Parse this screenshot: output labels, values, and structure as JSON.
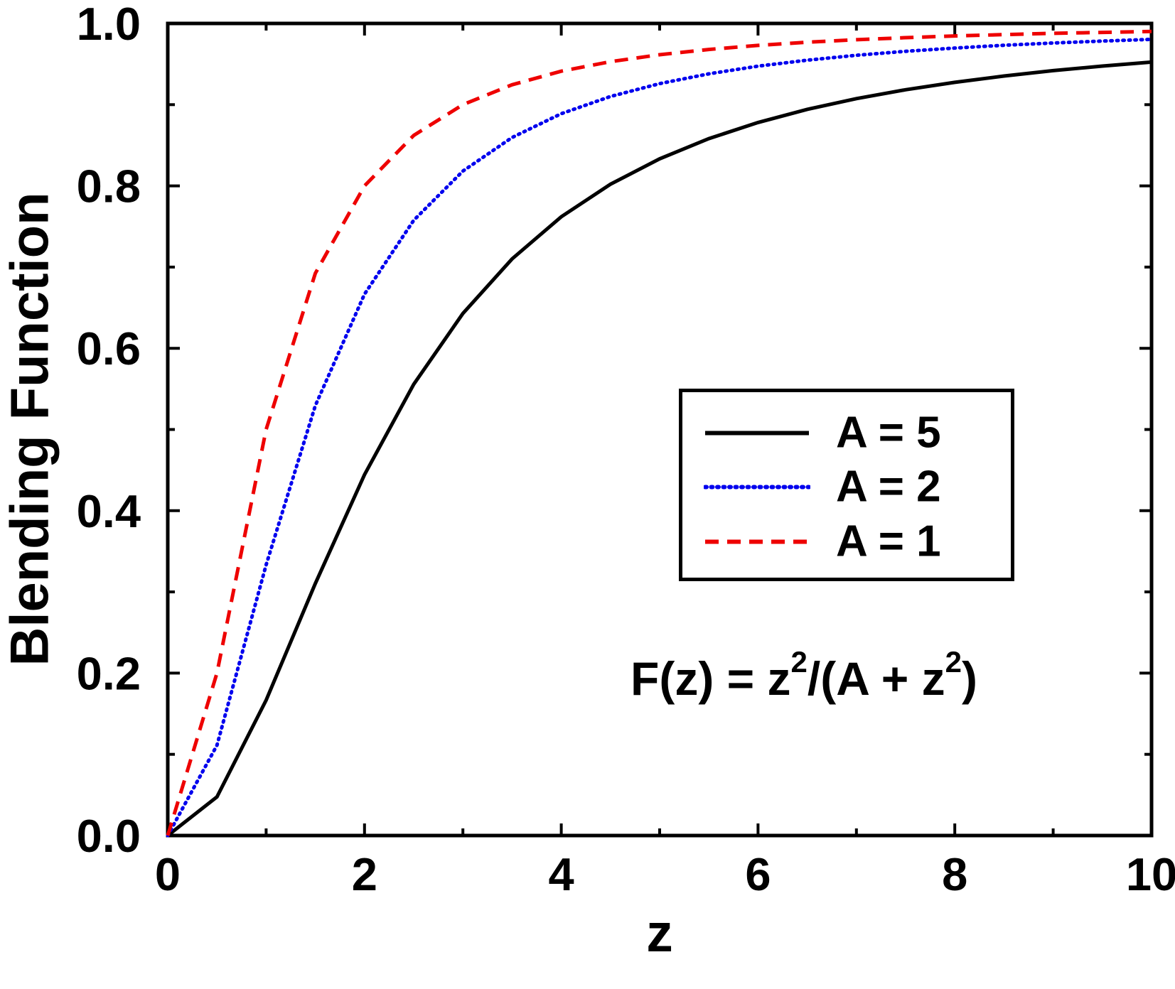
{
  "chart_data": {
    "type": "line",
    "title": "",
    "xlabel": "z",
    "ylabel": "Blending Function",
    "xlim": [
      0,
      10
    ],
    "ylim": [
      0.0,
      1.0
    ],
    "grid": false,
    "frame": "full-box-ticks-inward",
    "legend_position": "inside-upper-right",
    "x_major_ticks": [
      0,
      2,
      4,
      6,
      8,
      10
    ],
    "x_minor_ticks": [
      1,
      3,
      5,
      7,
      9
    ],
    "x_tick_labels": [
      "0",
      "2",
      "4",
      "6",
      "8",
      "10"
    ],
    "y_major_ticks": [
      0.0,
      0.2,
      0.4,
      0.6,
      0.8,
      1.0
    ],
    "y_minor_ticks": [
      0.1,
      0.3,
      0.5,
      0.7,
      0.9
    ],
    "y_tick_labels": [
      "0.0",
      "0.2",
      "0.4",
      "0.6",
      "0.8",
      "1.0"
    ],
    "x": [
      0,
      0.5,
      1,
      1.5,
      2,
      2.5,
      3,
      3.5,
      4,
      4.5,
      5,
      5.5,
      6,
      6.5,
      7,
      7.5,
      8,
      8.5,
      9,
      9.5,
      10
    ],
    "series": [
      {
        "name": "A = 5",
        "color": "#000000",
        "style": "solid",
        "values": [
          0,
          0.0476,
          0.1667,
          0.3103,
          0.4444,
          0.5556,
          0.6429,
          0.7101,
          0.7619,
          0.802,
          0.8333,
          0.8582,
          0.878,
          0.8942,
          0.9074,
          0.9184,
          0.9275,
          0.9353,
          0.9419,
          0.9475,
          0.9524
        ]
      },
      {
        "name": "A = 2",
        "color": "#0000ee",
        "style": "dotted",
        "values": [
          0,
          0.1111,
          0.3333,
          0.5294,
          0.6667,
          0.7576,
          0.8182,
          0.8596,
          0.8889,
          0.9101,
          0.9259,
          0.938,
          0.9474,
          0.9548,
          0.9608,
          0.9657,
          0.9697,
          0.9731,
          0.9759,
          0.9783,
          0.9804
        ]
      },
      {
        "name": "A = 1",
        "color": "#ee0000",
        "style": "dashed",
        "values": [
          0,
          0.2,
          0.5,
          0.6923,
          0.8,
          0.8621,
          0.9,
          0.9245,
          0.9412,
          0.9529,
          0.9615,
          0.968,
          0.973,
          0.9769,
          0.98,
          0.9825,
          0.9846,
          0.9863,
          0.9878,
          0.989,
          0.9901
        ]
      }
    ]
  },
  "legend": {
    "items": [
      {
        "label": "A = 5"
      },
      {
        "label": "A = 2"
      },
      {
        "label": "A = 1"
      }
    ]
  },
  "formula": {
    "part1": "F(z) = z",
    "sup1": "2",
    "part2": "/(A + z",
    "sup2": "2",
    "part3": ")"
  }
}
